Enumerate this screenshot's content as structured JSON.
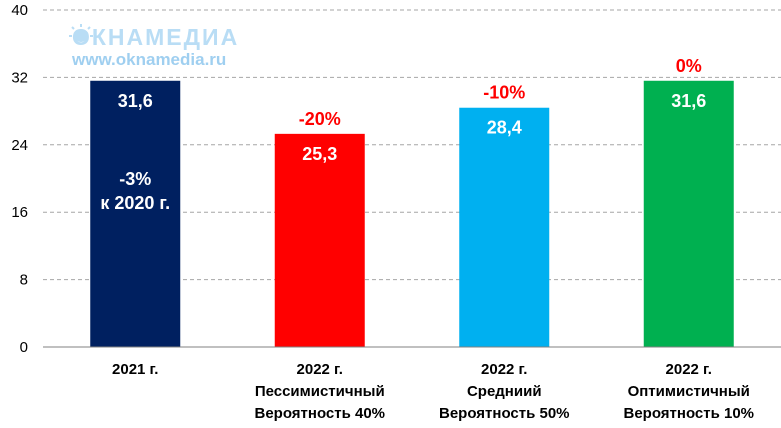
{
  "watermark": {
    "logo_text": "ОКНАМЕДИА",
    "url": "www.oknamedia.ru"
  },
  "chart_data": {
    "type": "bar",
    "ylim": [
      0,
      40
    ],
    "yticks": [
      0,
      8,
      16,
      24,
      32,
      40
    ],
    "grid": "horizontal-dashed",
    "categories": [
      [
        "2021 г."
      ],
      [
        "2022 г.",
        "Пессимистичный",
        "Вероятность 40%"
      ],
      [
        "2022 г.",
        "Средниий",
        "Вероятность 50%"
      ],
      [
        "2022 г.",
        "Оптимистичный",
        "Вероятность 10%"
      ]
    ],
    "values": [
      31.6,
      25.3,
      28.4,
      31.6
    ],
    "value_labels": [
      "31,6",
      "25,3",
      "28,4",
      "31,6"
    ],
    "change_labels": [
      "",
      "-20%",
      "-10%",
      "0%"
    ],
    "inner_annotation": {
      "bar": 0,
      "lines": [
        "-3%",
        "к 2020 г."
      ]
    },
    "colors": [
      "#002060",
      "#ff0000",
      "#00b0f0",
      "#00b050"
    ],
    "annotation_color": "#ff0000",
    "gridline_color": "#a6a6a6"
  }
}
